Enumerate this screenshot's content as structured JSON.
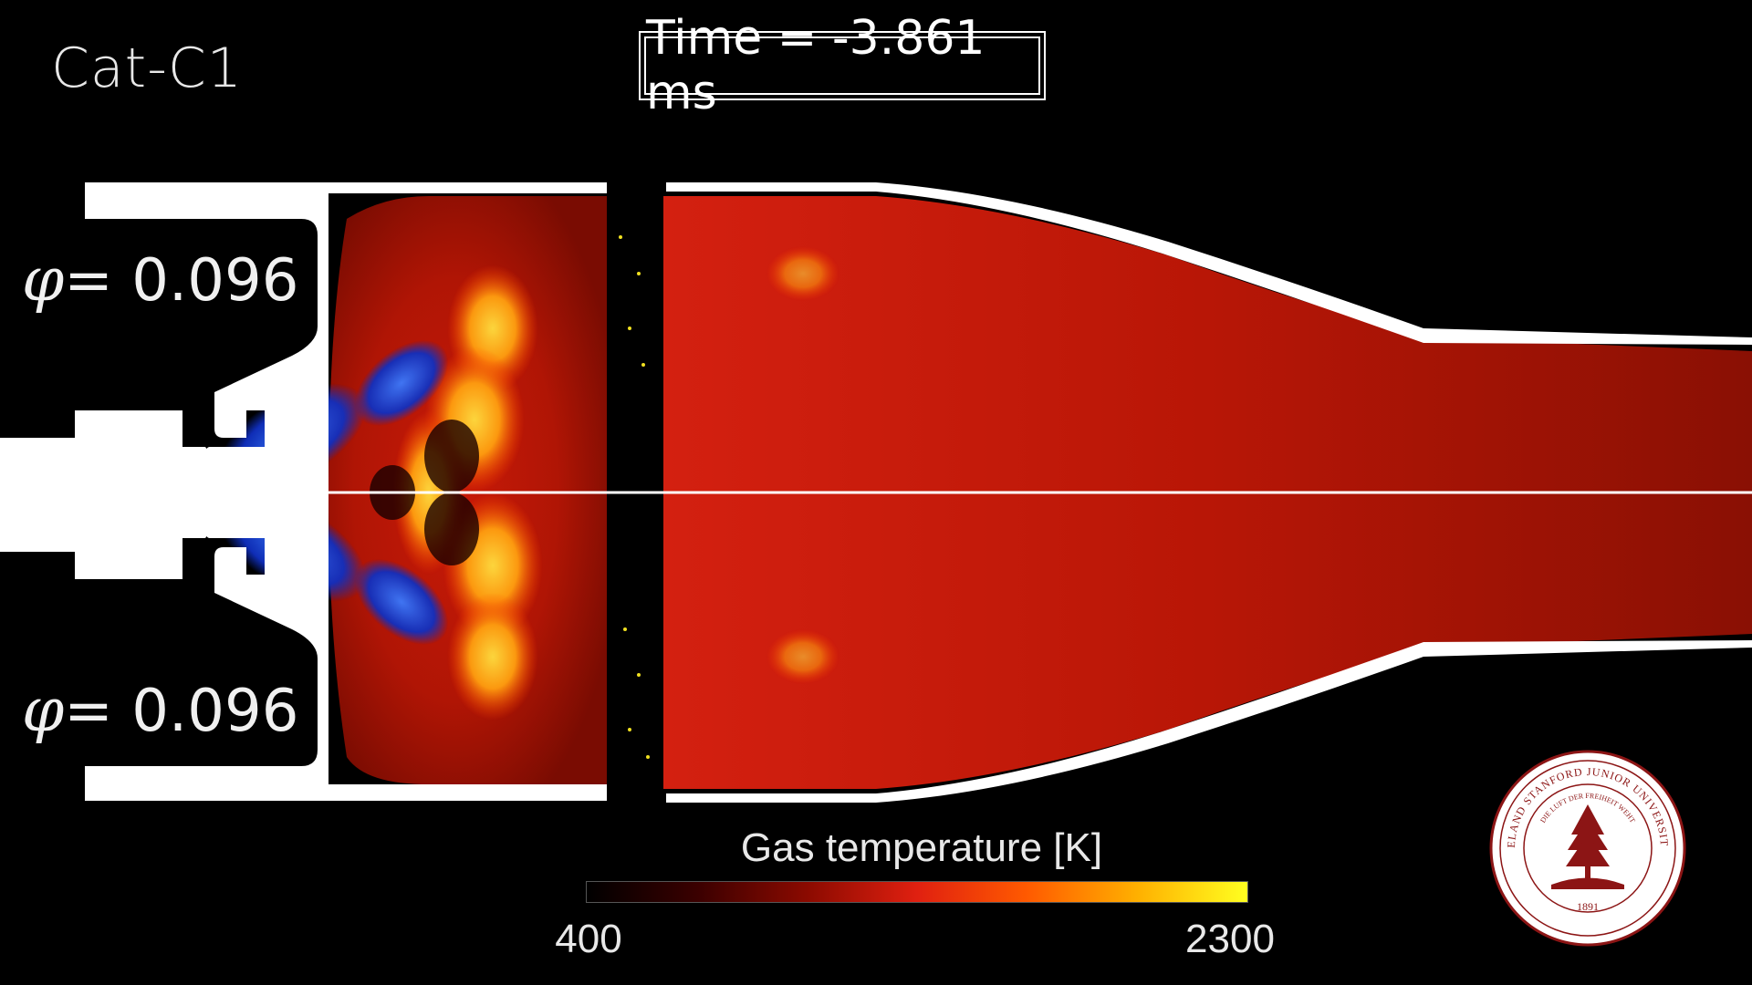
{
  "case_label": "Cat-C1",
  "time_label": "Time = -3.861 ms",
  "equivalence_ratio": {
    "symbol": "φ",
    "top": "= 0.096",
    "bottom": "= 0.096"
  },
  "colorbar": {
    "title": "Gas temperature [K]",
    "min": "400",
    "max": "2300",
    "colors": [
      "#000000",
      "#3a0000",
      "#8b0a00",
      "#e02010",
      "#ff5a00",
      "#ffb000",
      "#ffff20"
    ]
  },
  "seal": {
    "text": "LELAND STANFORD JUNIOR UNIVERSITY",
    "motto": "DIE LUFT DER FREIHEIT WEHT",
    "year": "1891",
    "color": "#8c1515"
  }
}
